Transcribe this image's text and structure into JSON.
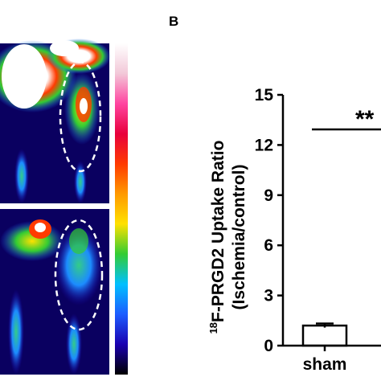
{
  "panel_label": "B",
  "chart_data": {
    "type": "bar",
    "categories": [
      "sham"
    ],
    "values": [
      1.2
    ],
    "errors": [
      0.12
    ],
    "ylabel_line1": "18F-PRGD2 Uptake Ratio",
    "ylabel_superscript": "18",
    "ylabel_main": "F-PRGD2 Uptake Ratio",
    "ylabel_line2": "(Ischemia/control)",
    "ylim": [
      0,
      15
    ],
    "yticks": [
      "0",
      "3",
      "6",
      "9",
      "12",
      "15"
    ],
    "significance": "**",
    "bar_fill": "#ffffff",
    "bar_stroke": "#000000"
  },
  "image_panel": {
    "colorbar": [
      "#ffffff",
      "#f2c8d8",
      "#ff44a0",
      "#e8003c",
      "#ff3a00",
      "#ff9a00",
      "#ffe100",
      "#33cc33",
      "#00c0ff",
      "#1c5cff",
      "#1a00b0",
      "#000000"
    ]
  }
}
